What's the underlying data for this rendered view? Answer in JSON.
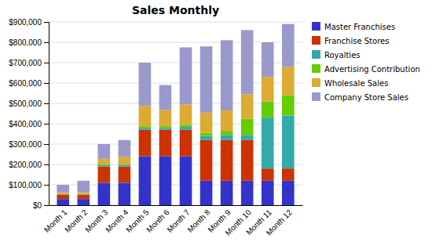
{
  "chart_data": {
    "type": "bar",
    "stacked": true,
    "title": "Sales Monthly",
    "categories": [
      "Month 1",
      "Month 2",
      "Month 3",
      "Month 4",
      "Month 5",
      "Month 6",
      "Month 7",
      "Month 8",
      "Month 9",
      "Month 10",
      "Month 11",
      "Month 12"
    ],
    "series": [
      {
        "name": "Master Franchises",
        "color": "#3333cc",
        "values": [
          30000,
          30000,
          110000,
          110000,
          240000,
          240000,
          240000,
          120000,
          120000,
          120000,
          120000,
          120000
        ]
      },
      {
        "name": "Franchise Stores",
        "color": "#cc3300",
        "values": [
          20000,
          20000,
          80000,
          80000,
          130000,
          130000,
          130000,
          200000,
          200000,
          200000,
          60000,
          60000
        ]
      },
      {
        "name": "Royalties",
        "color": "#33aaaa",
        "values": [
          3000,
          3000,
          8000,
          8000,
          10000,
          10000,
          15000,
          20000,
          25000,
          25000,
          250000,
          260000
        ]
      },
      {
        "name": "Advertising Contribution",
        "color": "#66cc00",
        "values": [
          2000,
          2000,
          5000,
          5000,
          8000,
          8000,
          10000,
          15000,
          20000,
          80000,
          80000,
          100000
        ]
      },
      {
        "name": "Wholesale Sales",
        "color": "#ddaa33",
        "values": [
          8000,
          8000,
          25000,
          35000,
          100000,
          80000,
          100000,
          100000,
          100000,
          120000,
          120000,
          140000
        ]
      },
      {
        "name": "Company Store Sales",
        "color": "#9999cc",
        "values": [
          37000,
          57000,
          72000,
          82000,
          212000,
          122000,
          280000,
          325000,
          345000,
          315000,
          170000,
          210000
        ]
      }
    ],
    "ylim": [
      0,
      900000
    ],
    "yticks": [
      {
        "value": 0,
        "label": "$0"
      },
      {
        "value": 100000,
        "label": "$100,000"
      },
      {
        "value": 200000,
        "label": "$200,000"
      },
      {
        "value": 300000,
        "label": "$300,000"
      },
      {
        "value": 400000,
        "label": "$400,000"
      },
      {
        "value": 500000,
        "label": "$500,000"
      },
      {
        "value": 600000,
        "label": "$600,000"
      },
      {
        "value": 700000,
        "label": "$700,000"
      },
      {
        "value": 800000,
        "label": "$800,000"
      },
      {
        "value": 900000,
        "label": "$900,000"
      }
    ],
    "grid": true,
    "legend": "right"
  }
}
